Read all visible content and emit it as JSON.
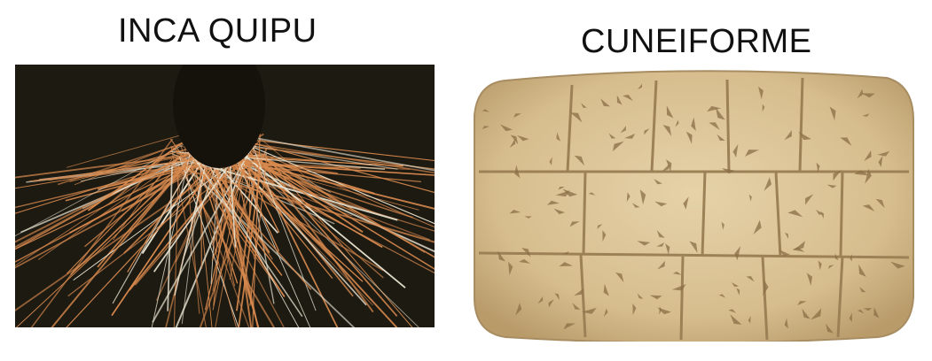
{
  "left": {
    "title": "INCA QUIPU"
  },
  "right": {
    "title": "CUNEIFORME"
  },
  "colors": {
    "quipu_background": "#1d1a12",
    "quipu_string_orange": "#d98a4e",
    "quipu_string_white": "#e8e2cf",
    "tablet_clay": "#dcc497",
    "tablet_shadow": "#a88d62"
  }
}
